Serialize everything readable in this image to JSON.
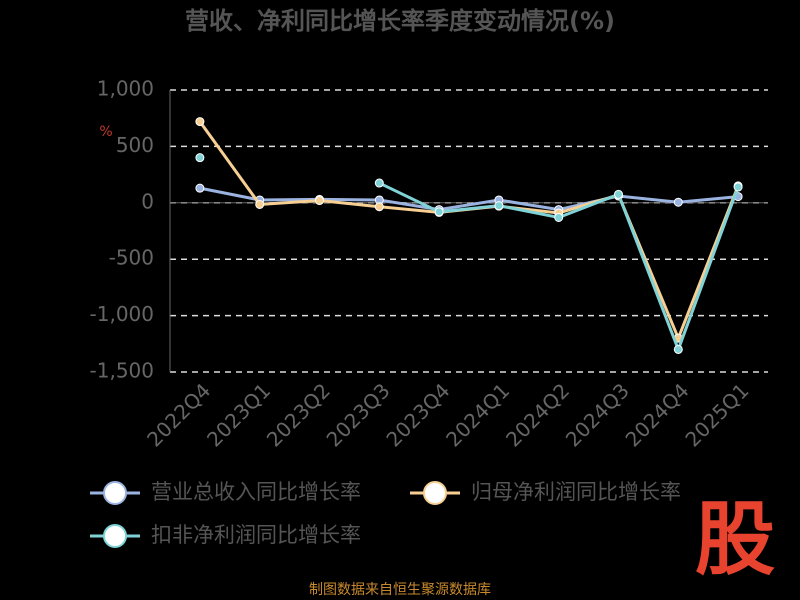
{
  "chart_data": {
    "type": "line",
    "title": "营收、净利同比增长率季度变动情况(%)",
    "y_unit": "%",
    "categories": [
      "2022Q4",
      "2023Q1",
      "2023Q2",
      "2023Q3",
      "2023Q4",
      "2024Q1",
      "2024Q2",
      "2024Q3",
      "2024Q4",
      "2025Q1"
    ],
    "series": [
      {
        "name": "营业总收入同比增长率",
        "color": "#9bb3e0",
        "values": [
          130,
          25,
          30,
          25,
          -60,
          25,
          -60,
          60,
          5,
          55
        ]
      },
      {
        "name": "归母净利润同比增长率",
        "color": "#f7cf93",
        "values": [
          720,
          -15,
          20,
          -35,
          -85,
          -30,
          -90,
          70,
          -1200,
          150
        ]
      },
      {
        "name": "扣非净利润同比增长率",
        "color": "#7fd3d6",
        "values": [
          400,
          null,
          null,
          175,
          -80,
          -25,
          -130,
          75,
          -1300,
          140
        ]
      }
    ],
    "ylim": [
      -1500,
      1000
    ],
    "yticks": [
      {
        "value": -1500,
        "label": "-1,500"
      },
      {
        "value": -1000,
        "label": "-1,000"
      },
      -500,
      0,
      500,
      {
        "value": 1000,
        "label": "1,000"
      }
    ],
    "grid": true,
    "watermark": "股",
    "source": "制图数据来自恒生聚源数据库"
  }
}
